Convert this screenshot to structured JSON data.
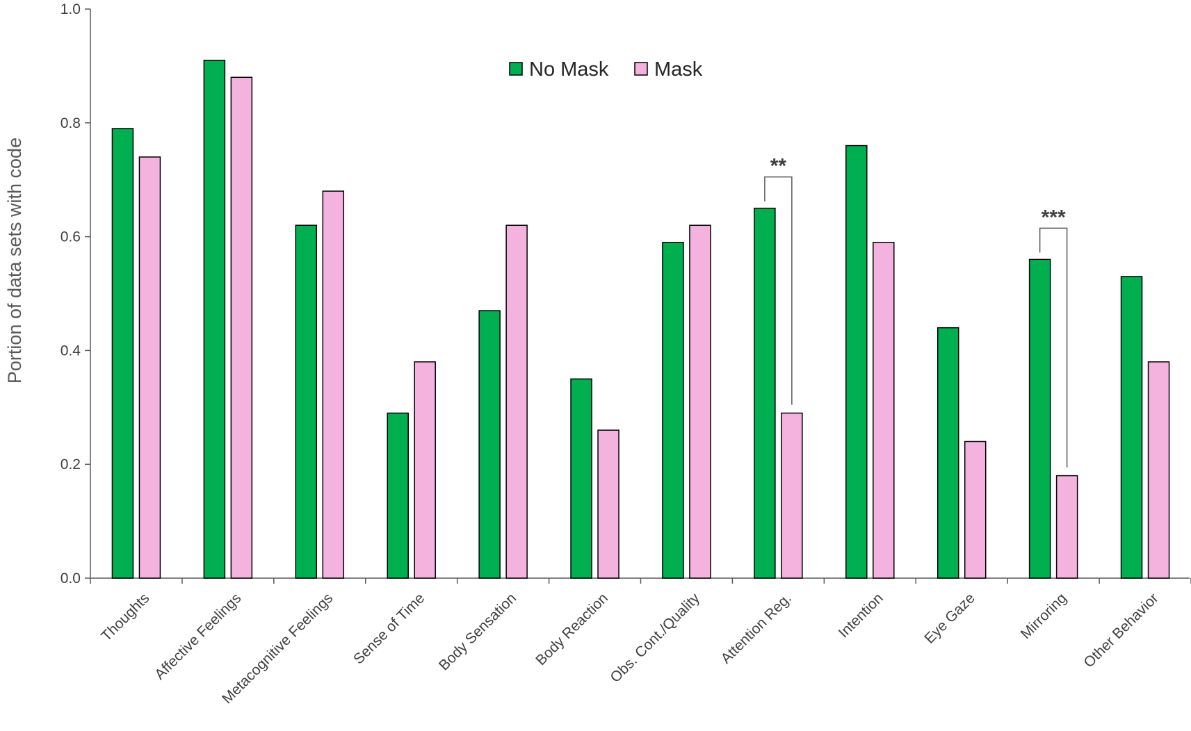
{
  "chart_data": {
    "type": "bar",
    "title": "",
    "xlabel": "",
    "ylabel": "Portion of data sets with code",
    "ylim": [
      0,
      1
    ],
    "yticks": [
      0.0,
      0.2,
      0.4,
      0.6,
      0.8,
      1.0
    ],
    "ytick_labels": [
      "0.0",
      "0.2",
      "0.4",
      "0.6",
      "0.8",
      "1.0"
    ],
    "grid": false,
    "legend_position": "top-center",
    "categories": [
      "Thoughts",
      "Affective Feelings",
      "Metacognitive Feelings",
      "Sense of Time",
      "Body Sensation",
      "Body Reaction",
      "Obs. Cont./Quality",
      "Attention Reg.",
      "Intention",
      "Eye Gaze",
      "Mirroring",
      "Other Behavior"
    ],
    "series": [
      {
        "name": "No Mask",
        "color": "#00b050",
        "values": [
          0.79,
          0.91,
          0.62,
          0.29,
          0.47,
          0.35,
          0.59,
          0.65,
          0.76,
          0.44,
          0.56,
          0.53
        ]
      },
      {
        "name": "Mask",
        "color": "#f4b2de",
        "values": [
          0.74,
          0.88,
          0.68,
          0.38,
          0.62,
          0.26,
          0.62,
          0.29,
          0.59,
          0.24,
          0.18,
          0.38
        ]
      }
    ],
    "annotations": [
      {
        "category": "Attention Reg.",
        "label": "**"
      },
      {
        "category": "Mirroring",
        "label": "***"
      }
    ]
  }
}
